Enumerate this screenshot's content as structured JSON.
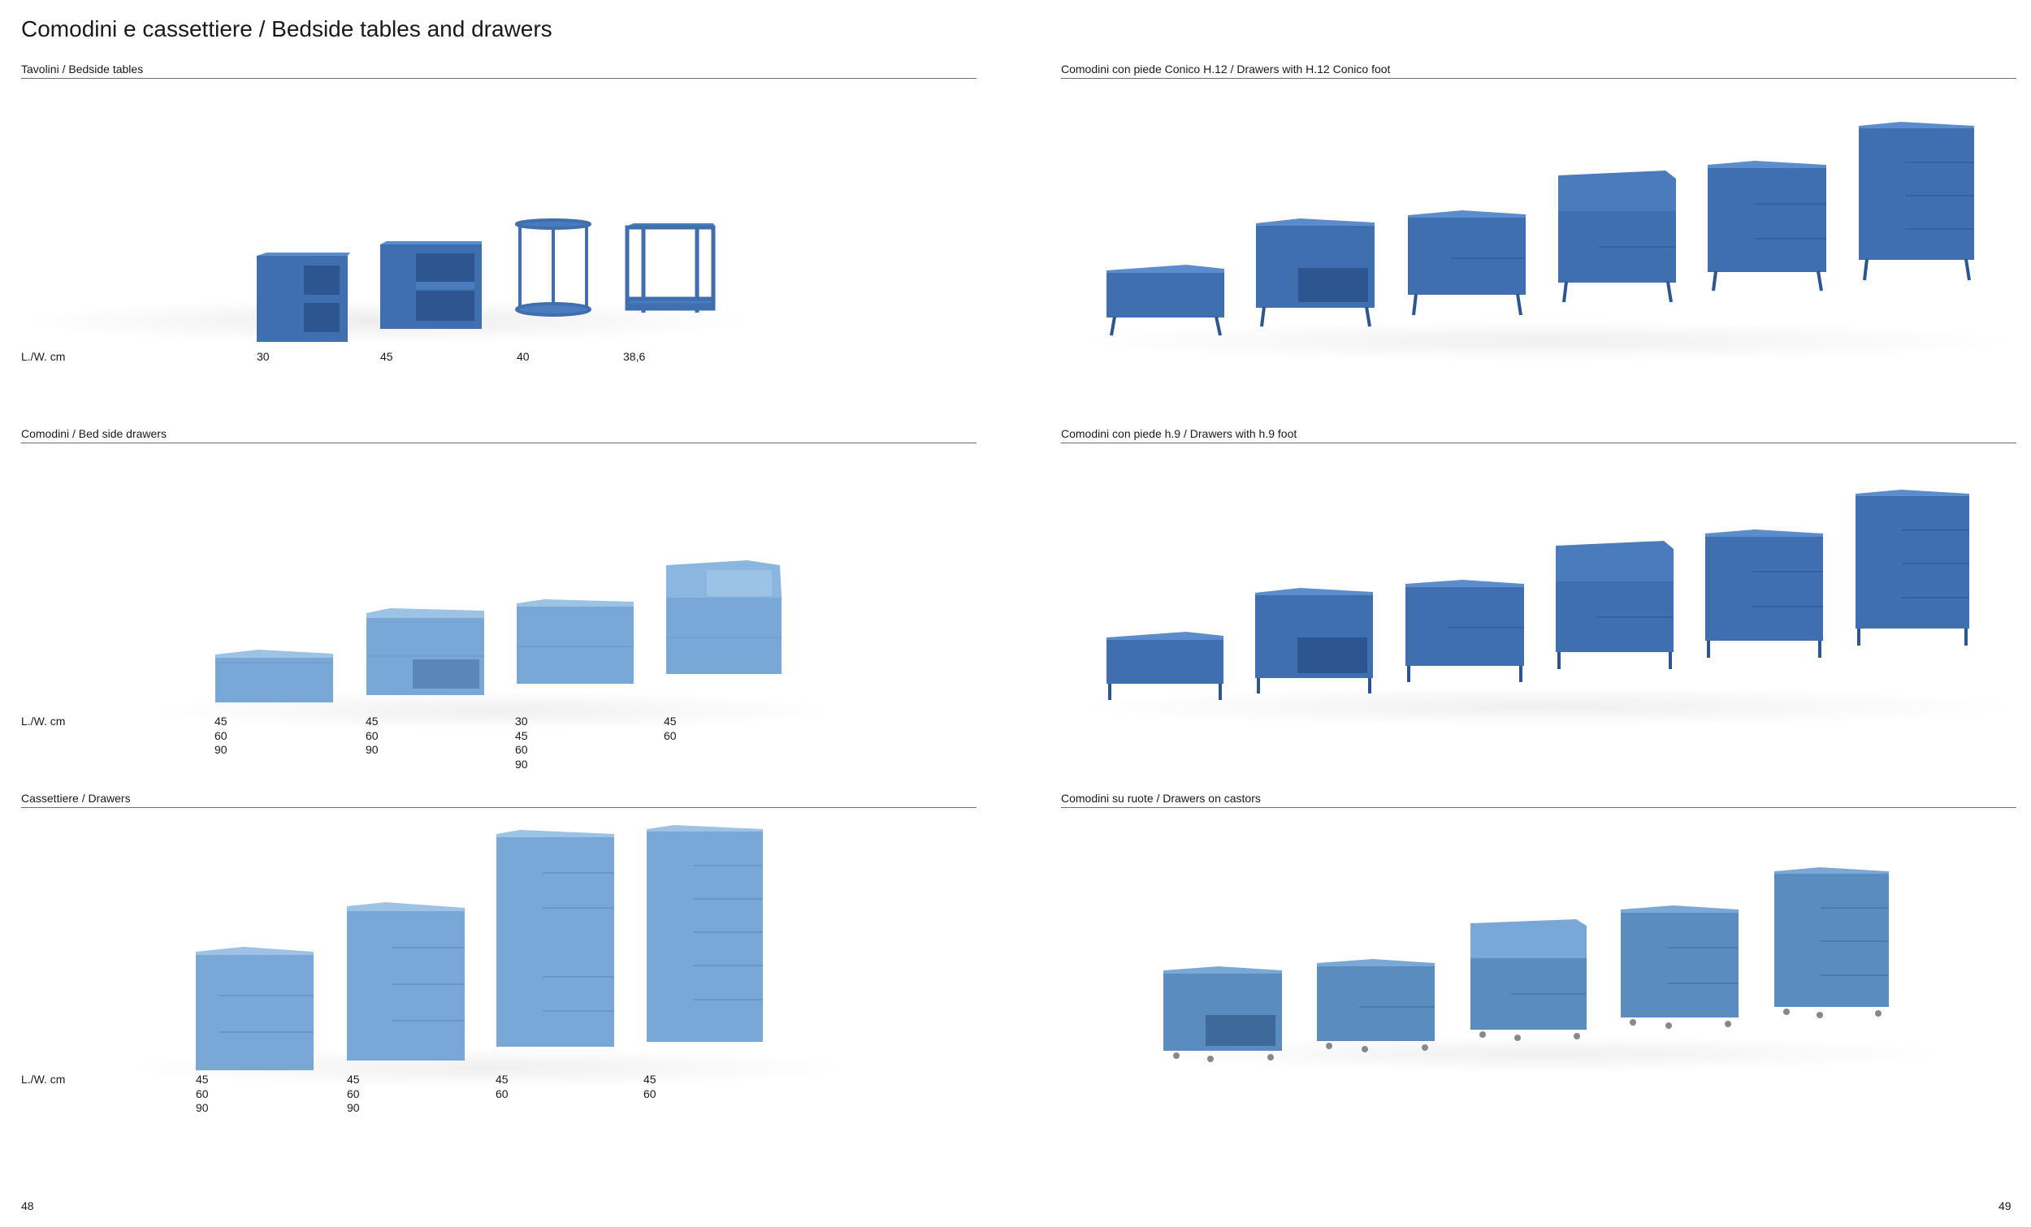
{
  "header": {
    "title": "Comodini e cassettiere / Bedside tables and drawers"
  },
  "left": {
    "bedside_tables": {
      "title": "Tavolini / Bedside tables",
      "dim_label": "L./W. cm",
      "widths": [
        "30",
        "45",
        "40",
        "38,6"
      ]
    },
    "bed_side_drawers": {
      "title": "Comodini / Bed side drawers",
      "dim_label": "L./W. cm",
      "columns": [
        [
          "45",
          "60",
          "90"
        ],
        [
          "45",
          "60",
          "90"
        ],
        [
          "30",
          "45",
          "60",
          "90"
        ],
        [
          "45",
          "60"
        ]
      ]
    },
    "drawers": {
      "title": "Cassettiere / Drawers",
      "dim_label": "L./W. cm",
      "columns": [
        [
          "45",
          "60",
          "90"
        ],
        [
          "45",
          "60",
          "90"
        ],
        [
          "45",
          "60"
        ],
        [
          "45",
          "60"
        ]
      ]
    }
  },
  "right": {
    "conico_foot": {
      "title": "Comodini con piede Conico H.12 / Drawers with H.12 Conico foot"
    },
    "h9_foot": {
      "title": "Comodini con piede h.9 / Drawers with h.9 foot"
    },
    "castors": {
      "title": "Comodini su ruote / Drawers on castors"
    }
  },
  "footer": {
    "page_left": "48",
    "page_right": "49"
  },
  "colors": {
    "dark_blue": "#3f6fae",
    "light_blue": "#79a8d6",
    "rule": "#6b6b6b"
  }
}
